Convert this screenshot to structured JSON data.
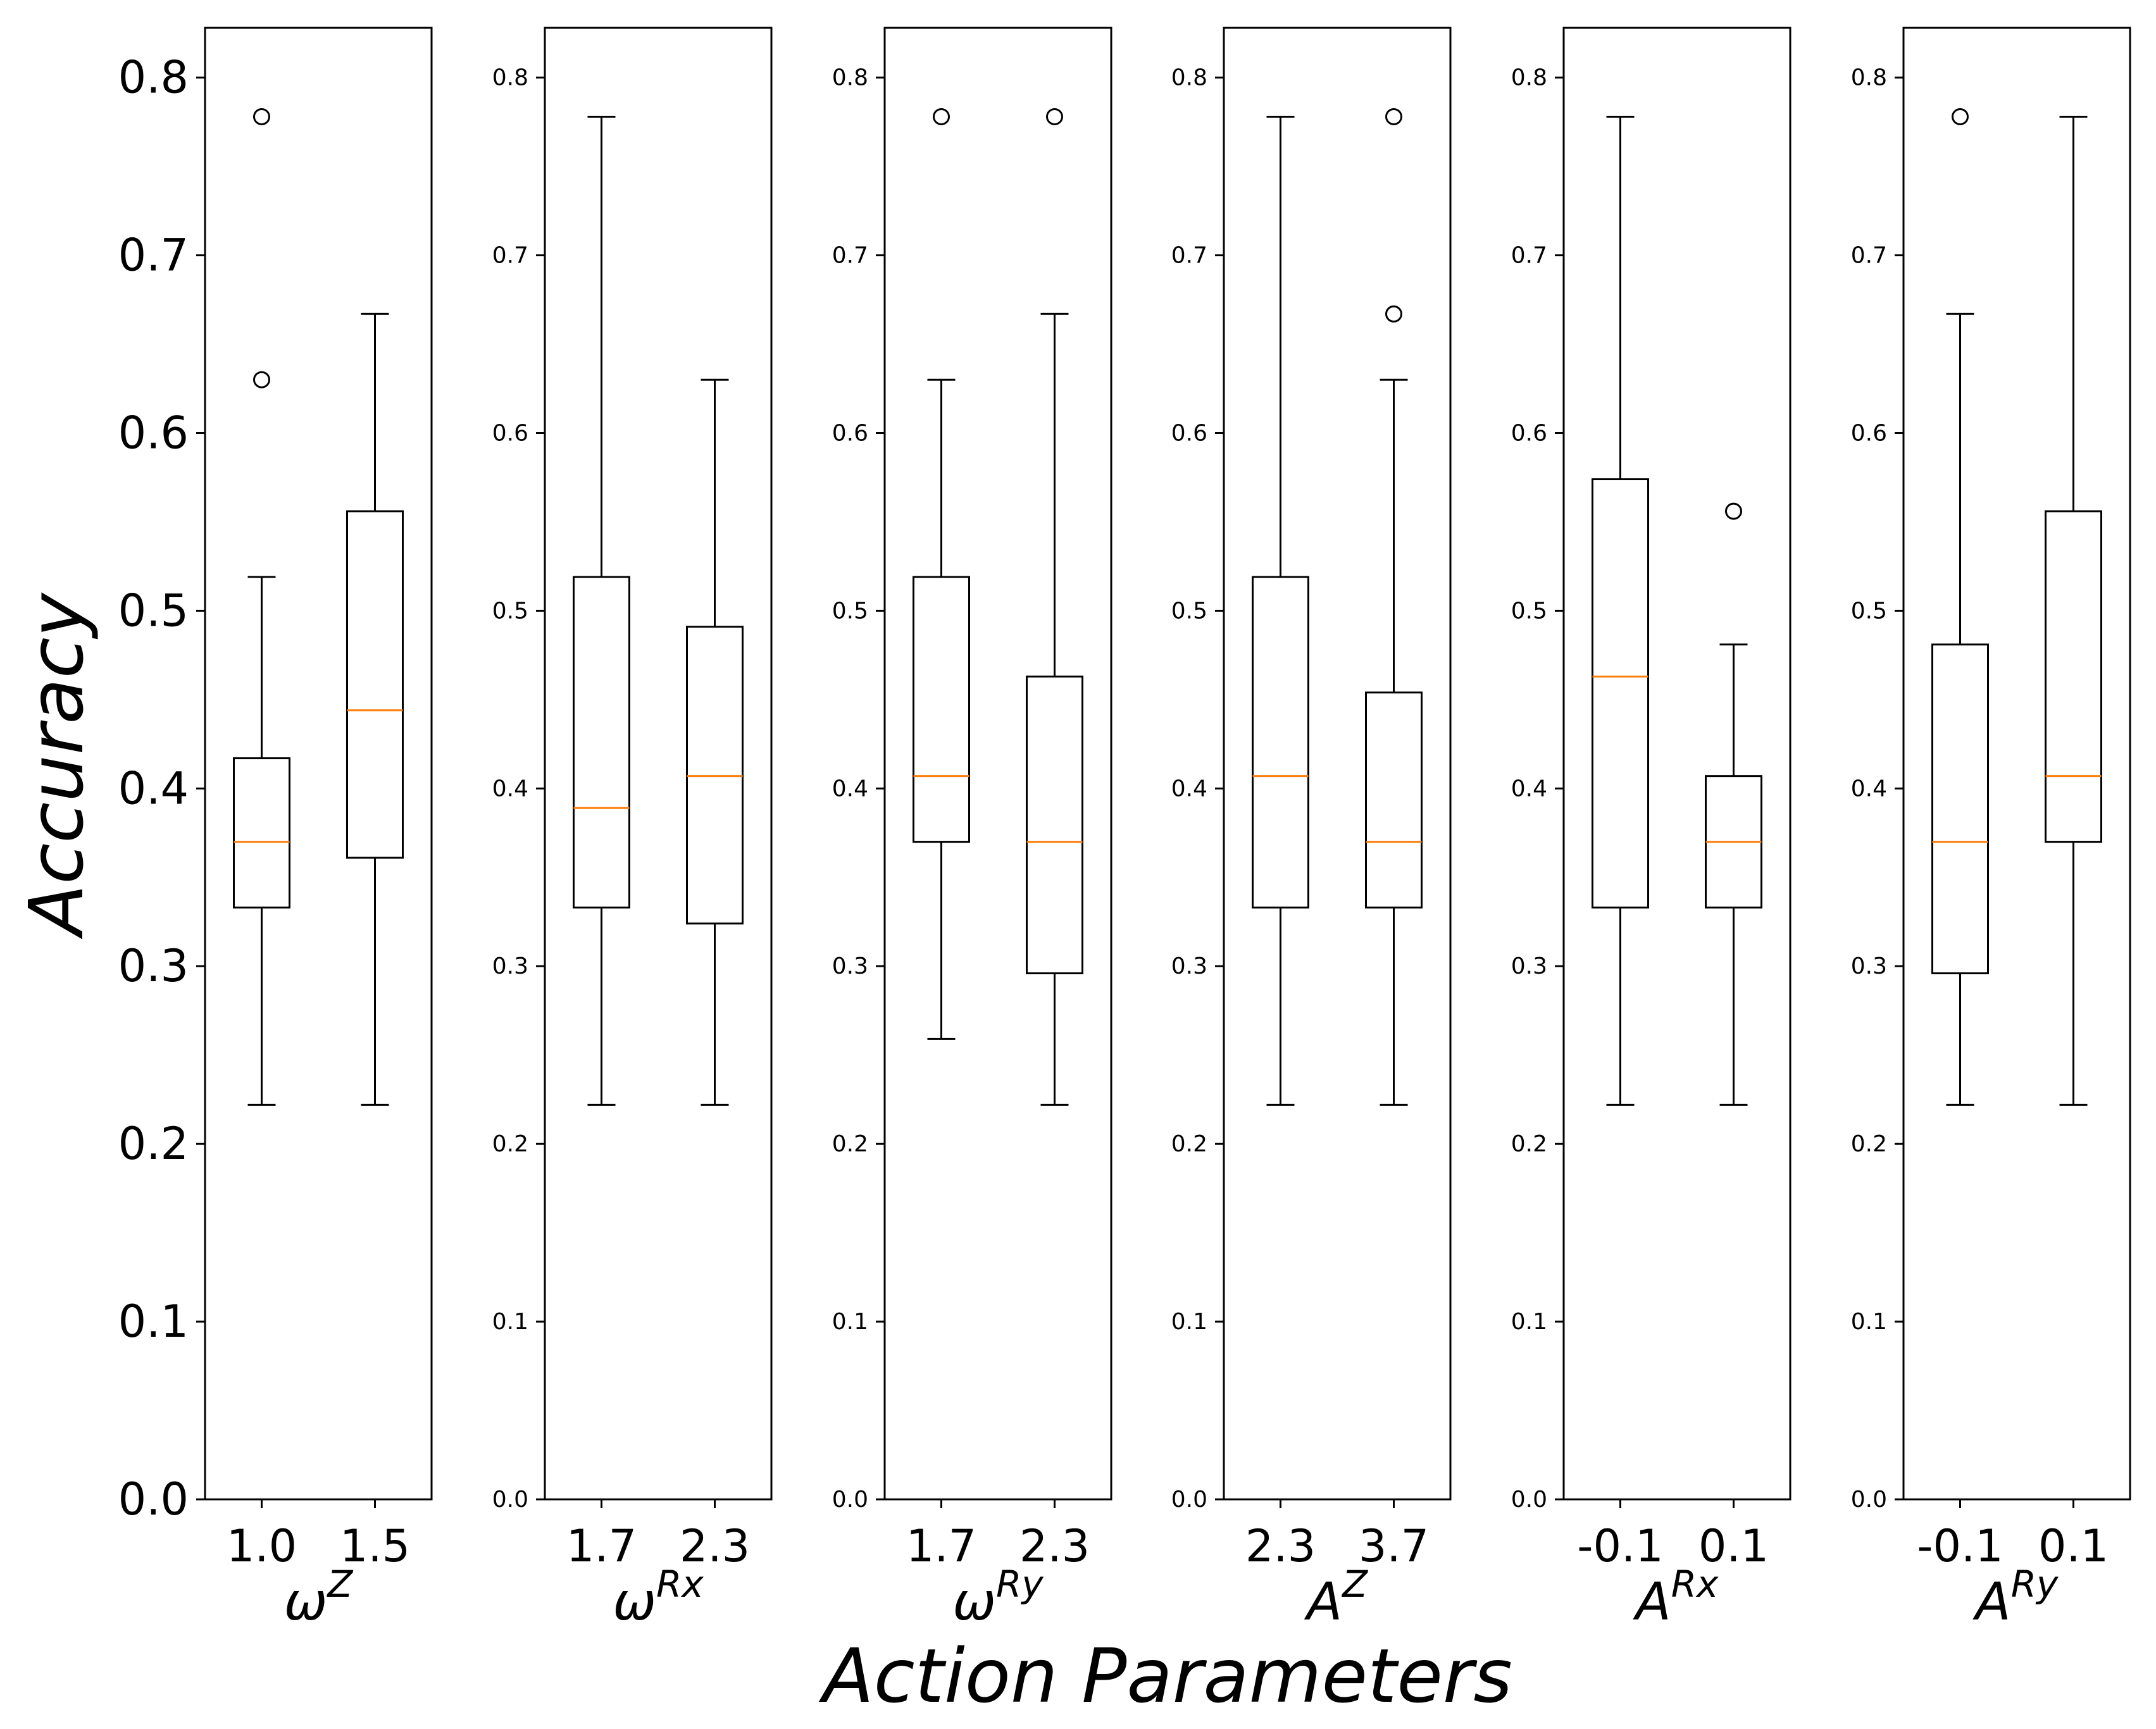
{
  "chart_data": {
    "type": "box",
    "ylabel": "Accuracy",
    "xlabel": "Action Parameters",
    "ylim": [
      0.0,
      0.828
    ],
    "yticks": [
      "0.0",
      "0.1",
      "0.2",
      "0.3",
      "0.4",
      "0.5",
      "0.6",
      "0.7",
      "0.8"
    ],
    "colors": {
      "median": "#ff7f0e",
      "box": "#000000",
      "outlier_edge": "#000000"
    },
    "panels": [
      {
        "param": {
          "base": "ω",
          "sup": "Z"
        },
        "boxes": [
          {
            "label": "1.0",
            "whislo": 0.222,
            "q1": 0.333,
            "med": 0.37,
            "q3": 0.417,
            "whishi": 0.519,
            "fliers": [
              0.63,
              0.778
            ]
          },
          {
            "label": "1.5",
            "whislo": 0.222,
            "q1": 0.361,
            "med": 0.444,
            "q3": 0.556,
            "whishi": 0.667,
            "fliers": []
          }
        ]
      },
      {
        "param": {
          "base": "ω",
          "sup": "Rx"
        },
        "boxes": [
          {
            "label": "1.7",
            "whislo": 0.222,
            "q1": 0.333,
            "med": 0.389,
            "q3": 0.519,
            "whishi": 0.778,
            "fliers": []
          },
          {
            "label": "2.3",
            "whislo": 0.222,
            "q1": 0.324,
            "med": 0.407,
            "q3": 0.491,
            "whishi": 0.63,
            "fliers": []
          }
        ]
      },
      {
        "param": {
          "base": "ω",
          "sup": "Ry"
        },
        "boxes": [
          {
            "label": "1.7",
            "whislo": 0.259,
            "q1": 0.37,
            "med": 0.407,
            "q3": 0.519,
            "whishi": 0.63,
            "fliers": [
              0.778
            ]
          },
          {
            "label": "2.3",
            "whislo": 0.222,
            "q1": 0.296,
            "med": 0.37,
            "q3": 0.463,
            "whishi": 0.667,
            "fliers": [
              0.778
            ]
          }
        ]
      },
      {
        "param": {
          "base": "A",
          "sup": "Z"
        },
        "boxes": [
          {
            "label": "2.3",
            "whislo": 0.222,
            "q1": 0.333,
            "med": 0.407,
            "q3": 0.519,
            "whishi": 0.778,
            "fliers": []
          },
          {
            "label": "3.7",
            "whislo": 0.222,
            "q1": 0.333,
            "med": 0.37,
            "q3": 0.454,
            "whishi": 0.63,
            "fliers": [
              0.667,
              0.778
            ]
          }
        ]
      },
      {
        "param": {
          "base": "A",
          "sup": "Rx"
        },
        "boxes": [
          {
            "label": "-0.1",
            "whislo": 0.222,
            "q1": 0.333,
            "med": 0.463,
            "q3": 0.574,
            "whishi": 0.778,
            "fliers": []
          },
          {
            "label": "0.1",
            "whislo": 0.222,
            "q1": 0.333,
            "med": 0.37,
            "q3": 0.407,
            "whishi": 0.481,
            "fliers": [
              0.556
            ]
          }
        ]
      },
      {
        "param": {
          "base": "A",
          "sup": "Ry"
        },
        "boxes": [
          {
            "label": "-0.1",
            "whislo": 0.222,
            "q1": 0.296,
            "med": 0.37,
            "q3": 0.481,
            "whishi": 0.667,
            "fliers": [
              0.778
            ]
          },
          {
            "label": "0.1",
            "whislo": 0.222,
            "q1": 0.37,
            "med": 0.407,
            "q3": 0.556,
            "whishi": 0.778,
            "fliers": []
          }
        ]
      }
    ]
  }
}
